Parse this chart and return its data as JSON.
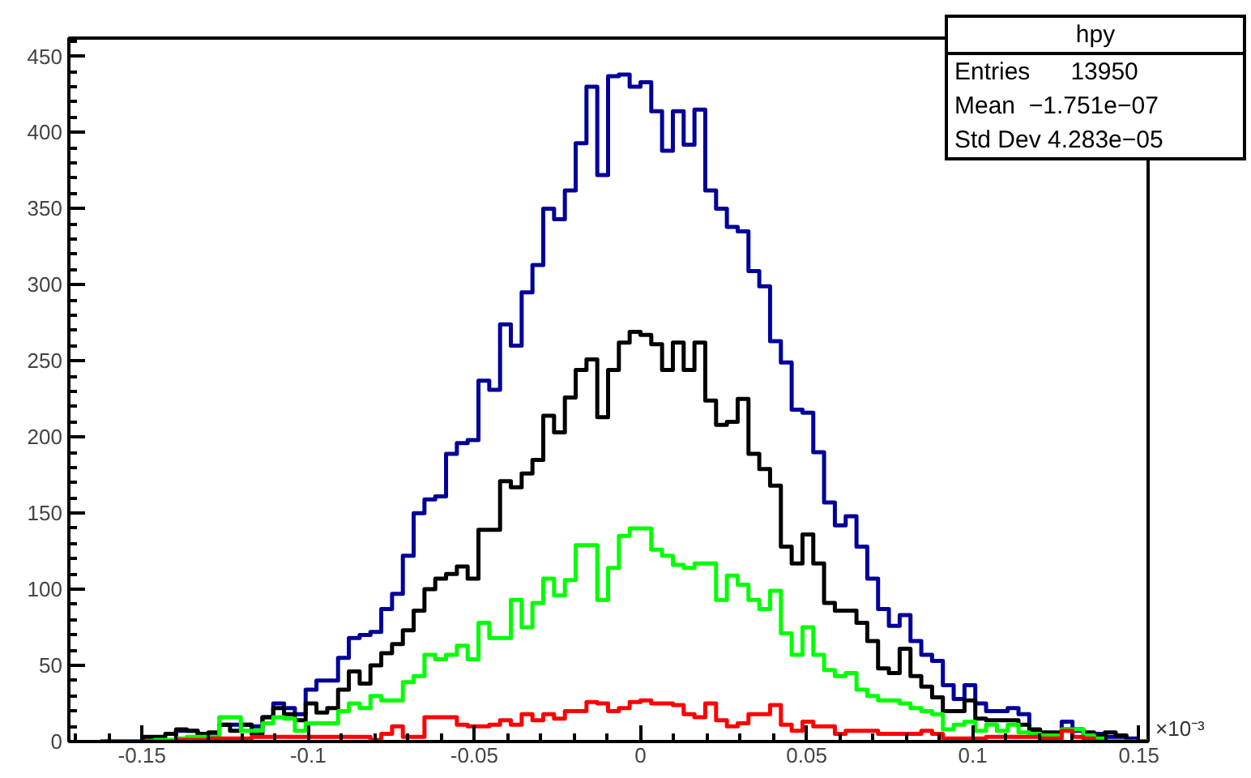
{
  "chart_data": {
    "type": "histogram",
    "title": "hpy",
    "bins": [
      -0.1625,
      -0.15925,
      -0.156,
      -0.15275,
      -0.1495,
      -0.14625,
      -0.143,
      -0.13975,
      -0.1365,
      -0.13325,
      -0.13,
      -0.12675,
      -0.1235,
      -0.12025,
      -0.117,
      -0.11375,
      -0.1105,
      -0.10725,
      -0.104,
      -0.10075,
      -0.0975,
      -0.09425,
      -0.091,
      -0.08775,
      -0.0845,
      -0.08125,
      -0.078,
      -0.07475,
      -0.0715,
      -0.06825,
      -0.065,
      -0.06175,
      -0.0585,
      -0.05525,
      -0.052,
      -0.04875,
      -0.0455,
      -0.04225,
      -0.039,
      -0.03575,
      -0.0325,
      -0.02925,
      -0.026,
      -0.02275,
      -0.0195,
      -0.01625,
      -0.013,
      -0.00975,
      -0.0065,
      -0.00325,
      0,
      0.00325,
      0.0065,
      0.00975,
      0.013,
      0.01625,
      0.0195,
      0.02275,
      0.026,
      0.02925,
      0.0325,
      0.03575,
      0.039,
      0.04225,
      0.0455,
      0.04875,
      0.052,
      0.05525,
      0.0585,
      0.06175,
      0.065,
      0.06825,
      0.0715,
      0.07475,
      0.078,
      0.08125,
      0.0845,
      0.08775,
      0.091,
      0.09425,
      0.0975,
      0.10075,
      0.104,
      0.10725,
      0.1105,
      0.11375,
      0.117,
      0.12025,
      0.1235,
      0.12675,
      0.13,
      0.13325,
      0.1365,
      0.13975,
      0.143,
      0.14625,
      0.1495,
      0.15275
    ],
    "series": [
      {
        "color": "#000099",
        "values": [
          0,
          0,
          0,
          0,
          0,
          0,
          0,
          7,
          7,
          5,
          5,
          11,
          11,
          11,
          10,
          16,
          25,
          22,
          18,
          34,
          40,
          40,
          55,
          68,
          70,
          72,
          87,
          97,
          122,
          150,
          159,
          161,
          189,
          196,
          198,
          237,
          231,
          274,
          260,
          295,
          313,
          350,
          343,
          362,
          393,
          430,
          372,
          437,
          438,
          430,
          433,
          414,
          388,
          414,
          392,
          415,
          362,
          350,
          338,
          335,
          309,
          299,
          263,
          249,
          218,
          216,
          190,
          157,
          142,
          148,
          128,
          107,
          87,
          76,
          83,
          66,
          57,
          53,
          37,
          28,
          37,
          25,
          20,
          20,
          22,
          18,
          7,
          5,
          5,
          13,
          7,
          5,
          5,
          3,
          3,
          2,
          0
        ]
      },
      {
        "color": "#000000",
        "values": [
          0,
          0,
          0,
          0,
          3,
          3,
          5,
          8,
          7,
          5,
          6,
          11,
          7,
          11,
          5,
          16,
          22,
          18,
          14,
          25,
          19,
          22,
          34,
          46,
          38,
          50,
          58,
          64,
          73,
          86,
          100,
          107,
          110,
          115,
          107,
          139,
          139,
          171,
          167,
          176,
          185,
          214,
          203,
          226,
          244,
          251,
          213,
          244,
          262,
          269,
          267,
          261,
          244,
          262,
          244,
          262,
          224,
          208,
          210,
          225,
          189,
          179,
          168,
          128,
          117,
          136,
          117,
          91,
          86,
          86,
          78,
          66,
          48,
          45,
          61,
          43,
          36,
          29,
          20,
          20,
          27,
          15,
          14,
          14,
          14,
          11,
          8,
          6,
          6,
          8,
          8,
          6,
          4,
          6,
          4,
          0,
          0
        ]
      },
      {
        "color": "#00ff00",
        "values": [
          0,
          0,
          0,
          0,
          0,
          1,
          1,
          2,
          3,
          3,
          3,
          16,
          16,
          7,
          7,
          12,
          16,
          15,
          7,
          12,
          12,
          12,
          20,
          25,
          22,
          30,
          27,
          27,
          39,
          43,
          57,
          54,
          57,
          63,
          54,
          78,
          68,
          68,
          93,
          75,
          91,
          107,
          96,
          106,
          129,
          129,
          93,
          114,
          135,
          140,
          140,
          126,
          122,
          116,
          114,
          117,
          117,
          93,
          109,
          103,
          93,
          87,
          99,
          71,
          57,
          75,
          57,
          47,
          43,
          45,
          34,
          30,
          27,
          27,
          25,
          22,
          20,
          18,
          8,
          11,
          13,
          7,
          11,
          7,
          11,
          6,
          5,
          4,
          4,
          8,
          8,
          4,
          2,
          0,
          0,
          0,
          0
        ]
      },
      {
        "color": "#ff0000",
        "values": [
          0,
          0,
          0,
          0,
          0,
          0,
          0,
          1,
          1,
          1,
          2,
          2,
          2,
          2,
          3,
          3,
          3,
          3,
          3,
          3,
          3,
          3,
          3,
          3,
          3,
          1,
          5,
          10,
          3,
          3,
          16,
          16,
          16,
          11,
          10,
          10,
          11,
          14,
          11,
          18,
          14,
          18,
          15,
          20,
          20,
          26,
          25,
          20,
          22,
          26,
          27,
          25,
          25,
          24,
          18,
          16,
          25,
          14,
          10,
          12,
          18,
          18,
          24,
          11,
          7,
          13,
          10,
          10,
          5,
          7,
          7,
          7,
          5,
          5,
          5,
          5,
          7,
          5,
          2,
          2,
          2,
          2,
          3,
          3,
          3,
          3,
          3,
          2,
          2,
          7,
          3,
          2,
          0,
          0,
          0,
          0,
          0
        ]
      }
    ],
    "xlim": [
      -0.172,
      0.15275
    ],
    "ylim": [
      0,
      462
    ],
    "xticks": [
      {
        "value": -0.15,
        "label": "-0.15"
      },
      {
        "value": -0.1,
        "label": "-0.1"
      },
      {
        "value": -0.05,
        "label": "-0.05"
      },
      0,
      0.05,
      0.1,
      0.15
    ],
    "yticks": [
      0,
      50,
      100,
      150,
      200,
      250,
      300,
      350,
      400,
      450
    ],
    "grid": false,
    "annotations": [
      "Entries      13950",
      "Mean  −1.751e−07",
      "Std Dev 4.283e−05",
      "×10⁻³"
    ]
  }
}
